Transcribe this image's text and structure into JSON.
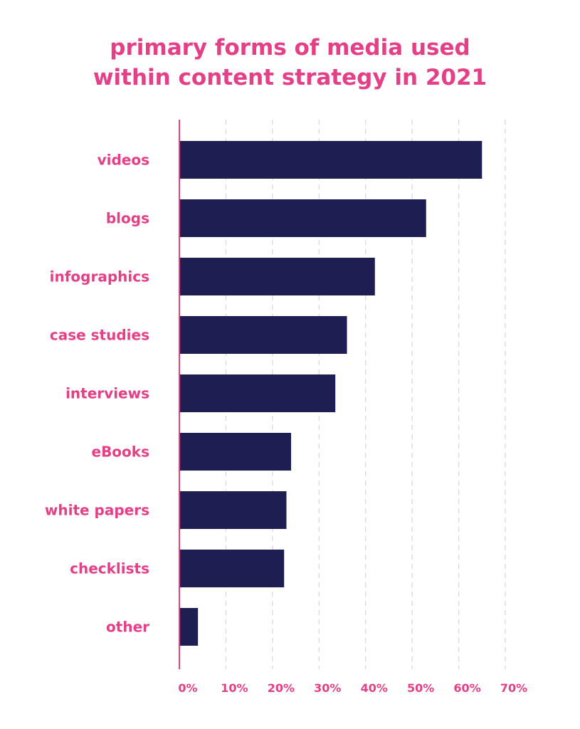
{
  "chart_data": {
    "type": "bar",
    "orientation": "horizontal",
    "title_lines": [
      "primary forms of media used",
      "within content strategy in 2021"
    ],
    "categories": [
      "videos",
      "blogs",
      "infographics",
      "case studies",
      "interviews",
      "eBooks",
      "white papers",
      "checklists",
      "other"
    ],
    "values": [
      65,
      53,
      42,
      36,
      33.5,
      24,
      23,
      22.5,
      4
    ],
    "xlim": [
      0,
      70
    ],
    "ticks": [
      0,
      10,
      20,
      30,
      40,
      50,
      60,
      70
    ],
    "tick_labels": [
      "0%",
      "10%",
      "20%",
      "30%",
      "40%",
      "50%",
      "60%",
      "70%"
    ],
    "xlabel": "",
    "ylabel": "",
    "grid": "vertical dashed",
    "colors": {
      "bar": "#1e1e52",
      "text": "#e43f87",
      "axis": "#e43f87",
      "grid": "#d6d6d6"
    }
  }
}
